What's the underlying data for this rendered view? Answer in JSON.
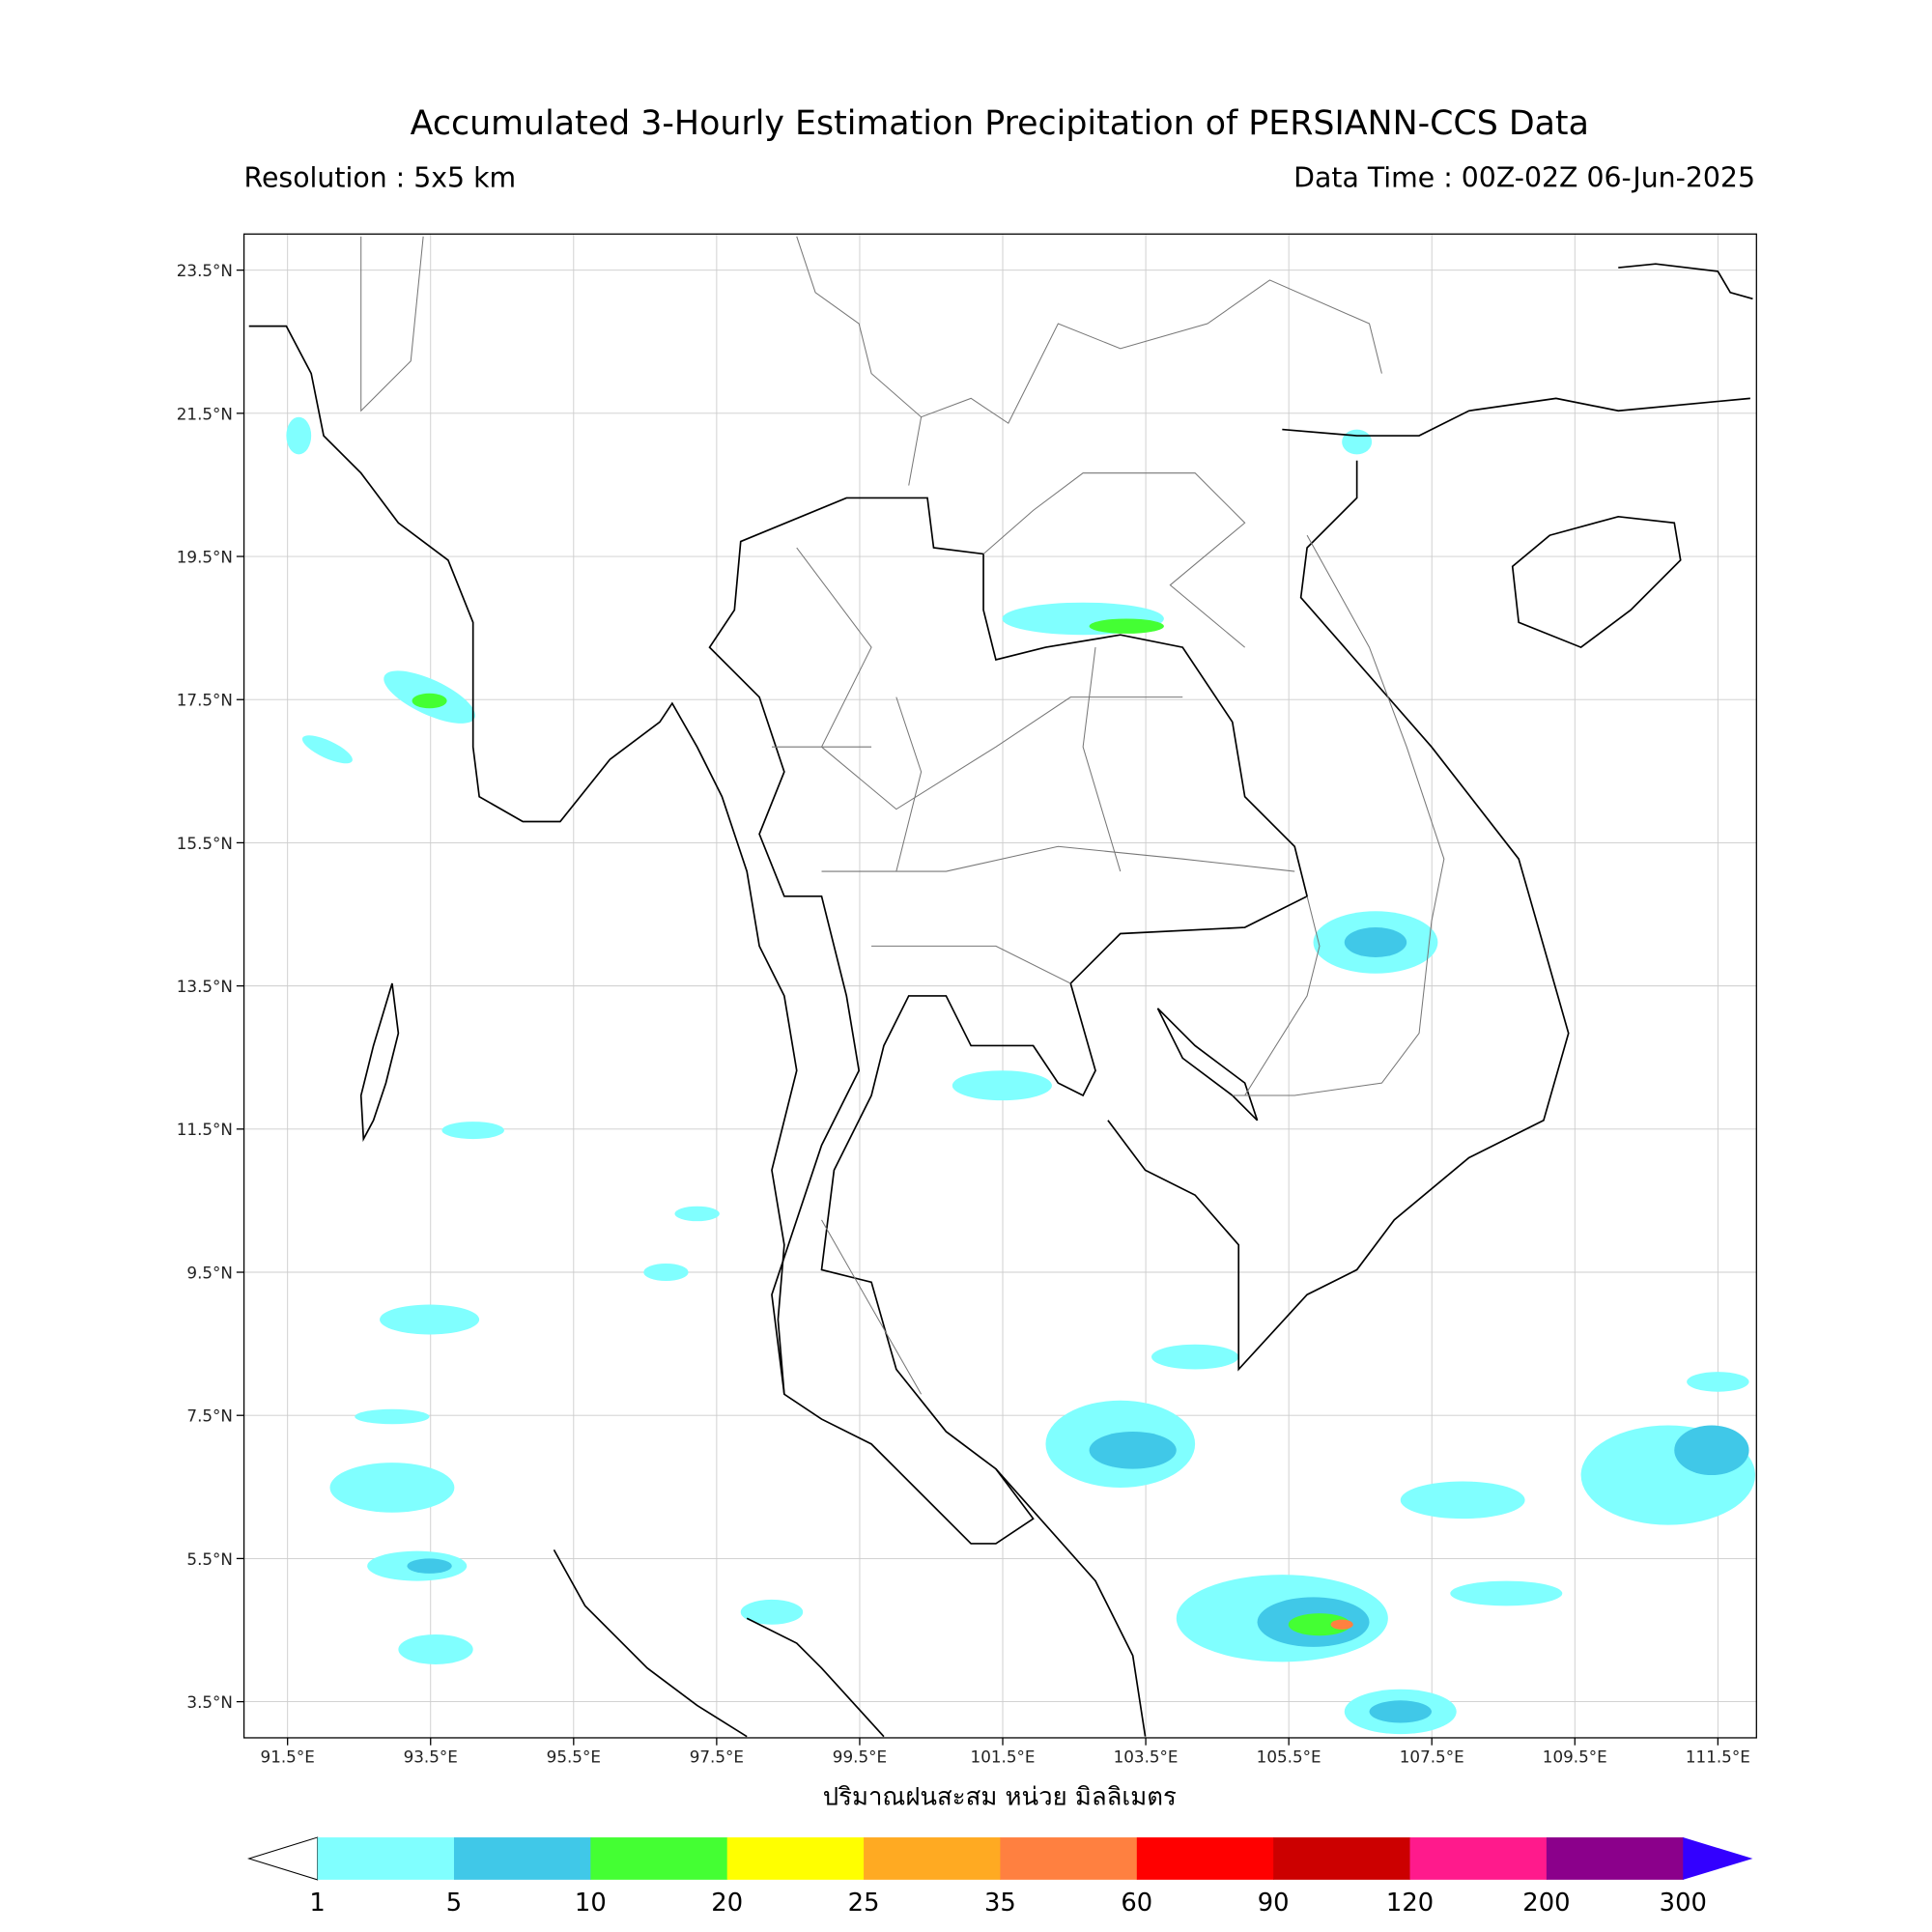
{
  "header": {
    "title": "Accumulated 3-Hourly Estimation Precipitation of PERSIANN-CCS Data",
    "resolution": "Resolution : 5x5 km",
    "data_time": "Data Time : 00Z-02Z 06-Jun-2025"
  },
  "map": {
    "lat_labels": [
      "23.5°N",
      "21.5°N",
      "19.5°N",
      "17.5°N",
      "15.5°N",
      "13.5°N",
      "11.5°N",
      "9.5°N",
      "7.5°N",
      "5.5°N",
      "3.5°N"
    ],
    "lon_labels": [
      "91.5°E",
      "93.5°E",
      "95.5°E",
      "97.5°E",
      "99.5°E",
      "101.5°E",
      "103.5°E",
      "105.5°E",
      "107.5°E",
      "109.5°E",
      "111.5°E"
    ],
    "xlabel": "ปริมาณฝนสะสม หน่วย มิลลิเมตร"
  },
  "colorbar": {
    "levels": [
      1,
      5,
      10,
      20,
      25,
      35,
      60,
      90,
      120,
      200,
      300
    ],
    "colors": [
      "#80ffff",
      "#40c8e8",
      "#44ff33",
      "#ffff00",
      "#ffaa22",
      "#ff8040",
      "#ff0000",
      "#cc0000",
      "#ff1a8c",
      "#8b008b"
    ],
    "over_color": "#3300ff"
  }
}
